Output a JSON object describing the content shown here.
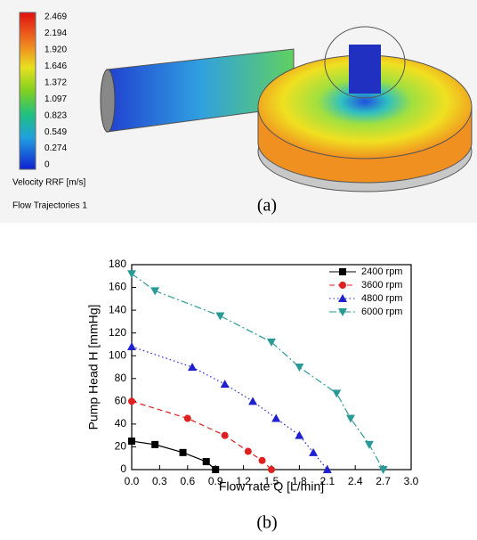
{
  "panel_a": {
    "colorbar_labels": [
      "2.469",
      "2.194",
      "1.920",
      "1.646",
      "1.372",
      "1.097",
      "0.823",
      "0.549",
      "0.274",
      "0"
    ],
    "colorbar_title": "Velocity RRF [m/s]",
    "trajectories": "Flow Trajectories 1",
    "caption": "(a)"
  },
  "chart_data": {
    "type": "line",
    "x_label": "Flow rate Q [L/min]",
    "y_label": "Pump Head H [mmHg]",
    "xlim": [
      0,
      3
    ],
    "xticks": [
      {
        "value": 0,
        "label": "0.0"
      },
      0.3,
      0.6,
      0.9,
      1.2,
      1.5,
      1.8,
      2.1,
      2.4,
      2.7,
      {
        "value": 3,
        "label": "3.0"
      }
    ],
    "ylim": [
      0,
      180
    ],
    "yticks": [
      0,
      20,
      40,
      60,
      80,
      100,
      120,
      140,
      160,
      180
    ],
    "legend": "top-right",
    "series": [
      {
        "name": "2400 rpm",
        "color": "#000000",
        "marker": "square",
        "dash": "solid",
        "x": [
          0,
          0.25,
          0.55,
          0.8,
          0.9
        ],
        "values": [
          25,
          22,
          15,
          7,
          0
        ]
      },
      {
        "name": "3600 rpm",
        "color": "#e02020",
        "marker": "circle",
        "dash": "dashed",
        "x": [
          0,
          0.6,
          1.0,
          1.25,
          1.4,
          1.5
        ],
        "values": [
          60,
          45,
          30,
          16,
          8,
          0
        ]
      },
      {
        "name": "4800 rpm",
        "color": "#2020d0",
        "marker": "triangle-up",
        "dash": "dotted",
        "x": [
          0,
          0.65,
          1.0,
          1.3,
          1.55,
          1.8,
          1.95,
          2.1
        ],
        "values": [
          108,
          90,
          75,
          60,
          45,
          30,
          15,
          0
        ]
      },
      {
        "name": "6000 rpm",
        "color": "#2a9a96",
        "marker": "triangle-down",
        "dash": "dashdot",
        "x": [
          0,
          0.25,
          0.95,
          1.5,
          1.8,
          2.2,
          2.35,
          2.55,
          2.7
        ],
        "values": [
          172,
          157,
          135,
          112,
          90,
          67,
          45,
          22,
          0
        ]
      }
    ]
  },
  "caption_b": "(b)"
}
